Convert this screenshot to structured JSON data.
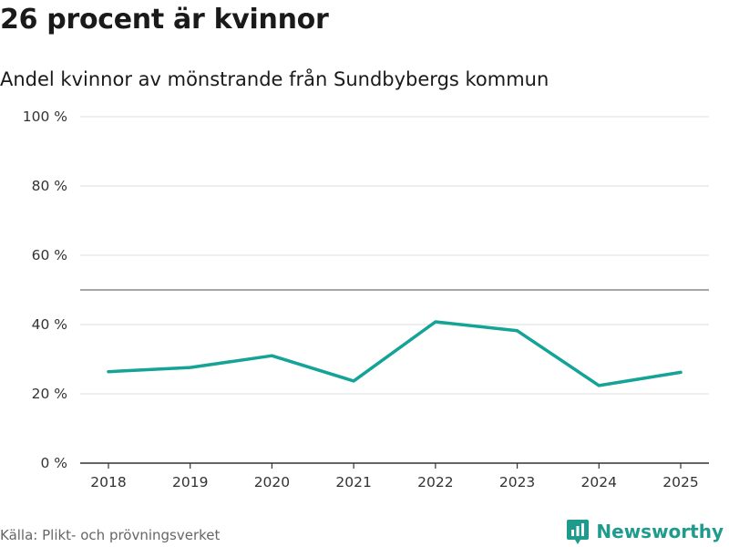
{
  "title": "26 procent är kvinnor",
  "subtitle": "Andel kvinnor av mönstrande från Sundbybergs kommun",
  "source": "Källa: Plikt- och prövningsverket",
  "brand": "Newsworthy",
  "colors": {
    "line": "#14a396",
    "grid": "#dddddd",
    "reference": "#888888",
    "axis": "#333333",
    "brand": "#1f9b8e"
  },
  "chart_data": {
    "type": "line",
    "title": "26 procent är kvinnor",
    "subtitle": "Andel kvinnor av mönstrande från Sundbybergs kommun",
    "xlabel": "",
    "ylabel": "",
    "categories": [
      "2018",
      "2019",
      "2020",
      "2021",
      "2022",
      "2023",
      "2024",
      "2025"
    ],
    "series": [
      {
        "name": "Andel kvinnor",
        "values": [
          26.4,
          27.6,
          31.0,
          23.7,
          40.8,
          38.2,
          22.4,
          26.2
        ]
      }
    ],
    "ylim": [
      0,
      100
    ],
    "yticks": [
      0,
      20,
      40,
      60,
      80,
      100
    ],
    "ytick_labels": [
      "0 %",
      "20 %",
      "40 %",
      "60 %",
      "80 %",
      "100 %"
    ],
    "reference_line": 50,
    "grid": true,
    "legend": "none"
  }
}
